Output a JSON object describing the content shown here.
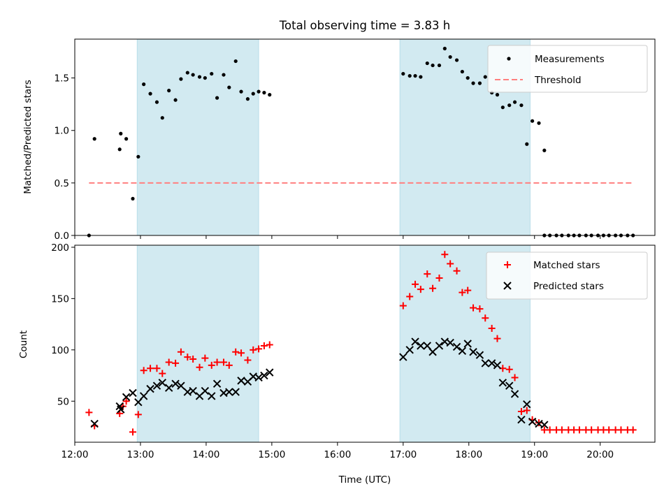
{
  "chart_data": [
    {
      "type": "scatter",
      "title": "Total observing time = 3.83 h",
      "ylabel": "Matched/Predicted stars",
      "xlabel": "",
      "xlim": [
        "12:00",
        "20:50"
      ],
      "ylim": [
        0,
        1.87
      ],
      "yticks": [
        "0.0",
        "0.5",
        "1.0",
        "1.5"
      ],
      "grid": false,
      "legend_position": "top-right",
      "shaded_intervals": [
        [
          "12:57",
          "14:48"
        ],
        [
          "16:57",
          "18:56"
        ]
      ],
      "shade_color": "#add8e6",
      "series": [
        {
          "name": "Measurements",
          "marker": "dot",
          "color": "#000000",
          "points": [
            [
              "12:13",
              0.0
            ],
            [
              "12:18",
              0.92
            ],
            [
              "12:41",
              0.82
            ],
            [
              "12:42",
              0.97
            ],
            [
              "12:47",
              0.92
            ],
            [
              "12:53",
              0.35
            ],
            [
              "12:58",
              0.75
            ],
            [
              "13:03",
              1.44
            ],
            [
              "13:09",
              1.35
            ],
            [
              "13:15",
              1.27
            ],
            [
              "13:20",
              1.12
            ],
            [
              "13:26",
              1.38
            ],
            [
              "13:32",
              1.29
            ],
            [
              "13:37",
              1.49
            ],
            [
              "13:43",
              1.55
            ],
            [
              "13:48",
              1.53
            ],
            [
              "13:54",
              1.51
            ],
            [
              "13:59",
              1.5
            ],
            [
              "14:05",
              1.54
            ],
            [
              "14:10",
              1.31
            ],
            [
              "14:16",
              1.53
            ],
            [
              "14:21",
              1.41
            ],
            [
              "14:27",
              1.66
            ],
            [
              "14:32",
              1.37
            ],
            [
              "14:38",
              1.3
            ],
            [
              "14:43",
              1.35
            ],
            [
              "14:48",
              1.37
            ],
            [
              "14:53",
              1.36
            ],
            [
              "14:58",
              1.34
            ],
            [
              "17:00",
              1.54
            ],
            [
              "17:06",
              1.52
            ],
            [
              "17:11",
              1.52
            ],
            [
              "17:16",
              1.51
            ],
            [
              "17:22",
              1.64
            ],
            [
              "17:27",
              1.62
            ],
            [
              "17:33",
              1.62
            ],
            [
              "17:38",
              1.78
            ],
            [
              "17:43",
              1.7
            ],
            [
              "17:49",
              1.67
            ],
            [
              "17:54",
              1.56
            ],
            [
              "17:59",
              1.5
            ],
            [
              "18:04",
              1.45
            ],
            [
              "18:10",
              1.45
            ],
            [
              "18:15",
              1.51
            ],
            [
              "18:21",
              1.36
            ],
            [
              "18:26",
              1.34
            ],
            [
              "18:31",
              1.22
            ],
            [
              "18:37",
              1.24
            ],
            [
              "18:42",
              1.27
            ],
            [
              "18:48",
              1.24
            ],
            [
              "18:53",
              0.87
            ],
            [
              "18:58",
              1.09
            ],
            [
              "19:04",
              1.07
            ],
            [
              "19:09",
              0.81
            ],
            [
              "19:09",
              0.0
            ],
            [
              "19:14",
              0.0
            ],
            [
              "19:20",
              0.0
            ],
            [
              "19:25",
              0.0
            ],
            [
              "19:31",
              0.0
            ],
            [
              "19:36",
              0.0
            ],
            [
              "19:41",
              0.0
            ],
            [
              "19:47",
              0.0
            ],
            [
              "19:52",
              0.0
            ],
            [
              "19:58",
              0.0
            ],
            [
              "20:03",
              0.0
            ],
            [
              "20:08",
              0.0
            ],
            [
              "20:14",
              0.0
            ],
            [
              "20:19",
              0.0
            ],
            [
              "20:25",
              0.0
            ],
            [
              "20:30",
              0.0
            ]
          ]
        },
        {
          "name": "Threshold",
          "line": "dashed",
          "color": "#ff7f7f",
          "points": [
            [
              "12:13",
              0.5
            ],
            [
              "20:30",
              0.5
            ]
          ]
        }
      ]
    },
    {
      "type": "scatter",
      "title": "",
      "ylabel": "Count",
      "xlabel": "Time (UTC)",
      "xlim": [
        "12:00",
        "20:50"
      ],
      "ylim": [
        10,
        202
      ],
      "yticks": [
        "50",
        "100",
        "150",
        "200"
      ],
      "xticks": [
        "12:00",
        "13:00",
        "14:00",
        "15:00",
        "16:00",
        "17:00",
        "18:00",
        "19:00",
        "20:00"
      ],
      "grid": false,
      "legend_position": "top-right",
      "shaded_intervals": [
        [
          "12:57",
          "14:48"
        ],
        [
          "16:57",
          "18:56"
        ]
      ],
      "shade_color": "#add8e6",
      "series": [
        {
          "name": "Matched stars",
          "marker": "plus",
          "color": "#ff0000",
          "points": [
            [
              "12:13",
              39
            ],
            [
              "12:18",
              26
            ],
            [
              "12:41",
              38
            ],
            [
              "12:44",
              45
            ],
            [
              "12:47",
              50
            ],
            [
              "12:53",
              20
            ],
            [
              "12:58",
              37
            ],
            [
              "13:03",
              80
            ],
            [
              "13:09",
              82
            ],
            [
              "13:15",
              82
            ],
            [
              "13:20",
              77
            ],
            [
              "13:26",
              88
            ],
            [
              "13:32",
              87
            ],
            [
              "13:37",
              98
            ],
            [
              "13:43",
              93
            ],
            [
              "13:48",
              91
            ],
            [
              "13:54",
              83
            ],
            [
              "13:59",
              92
            ],
            [
              "14:05",
              85
            ],
            [
              "14:10",
              88
            ],
            [
              "14:16",
              88
            ],
            [
              "14:21",
              85
            ],
            [
              "14:27",
              98
            ],
            [
              "14:32",
              97
            ],
            [
              "14:38",
              90
            ],
            [
              "14:43",
              100
            ],
            [
              "14:48",
              101
            ],
            [
              "14:53",
              104
            ],
            [
              "14:58",
              105
            ],
            [
              "17:00",
              143
            ],
            [
              "17:06",
              152
            ],
            [
              "17:11",
              164
            ],
            [
              "17:16",
              159
            ],
            [
              "17:22",
              174
            ],
            [
              "17:27",
              160
            ],
            [
              "17:33",
              170
            ],
            [
              "17:38",
              193
            ],
            [
              "17:43",
              184
            ],
            [
              "17:49",
              177
            ],
            [
              "17:54",
              156
            ],
            [
              "17:59",
              158
            ],
            [
              "18:04",
              141
            ],
            [
              "18:10",
              140
            ],
            [
              "18:15",
              131
            ],
            [
              "18:21",
              121
            ],
            [
              "18:26",
              111
            ],
            [
              "18:31",
              82
            ],
            [
              "18:37",
              81
            ],
            [
              "18:42",
              73
            ],
            [
              "18:48",
              40
            ],
            [
              "18:53",
              41
            ],
            [
              "18:58",
              32
            ],
            [
              "19:04",
              29
            ],
            [
              "19:09",
              22
            ],
            [
              "19:14",
              22
            ],
            [
              "19:20",
              22
            ],
            [
              "19:25",
              22
            ],
            [
              "19:31",
              22
            ],
            [
              "19:36",
              22
            ],
            [
              "19:41",
              22
            ],
            [
              "19:47",
              22
            ],
            [
              "19:52",
              22
            ],
            [
              "19:58",
              22
            ],
            [
              "20:03",
              22
            ],
            [
              "20:08",
              22
            ],
            [
              "20:14",
              22
            ],
            [
              "20:19",
              22
            ],
            [
              "20:25",
              22
            ],
            [
              "20:30",
              22
            ]
          ]
        },
        {
          "name": "Predicted stars",
          "marker": "x",
          "color": "#000000",
          "points": [
            [
              "12:18",
              28
            ],
            [
              "12:41",
              45
            ],
            [
              "12:42",
              42
            ],
            [
              "12:47",
              54
            ],
            [
              "12:53",
              58
            ],
            [
              "12:58",
              49
            ],
            [
              "13:03",
              55
            ],
            [
              "13:09",
              62
            ],
            [
              "13:15",
              65
            ],
            [
              "13:20",
              68
            ],
            [
              "13:26",
              63
            ],
            [
              "13:32",
              67
            ],
            [
              "13:37",
              65
            ],
            [
              "13:43",
              59
            ],
            [
              "13:48",
              60
            ],
            [
              "13:54",
              55
            ],
            [
              "13:59",
              60
            ],
            [
              "14:05",
              55
            ],
            [
              "14:10",
              67
            ],
            [
              "14:16",
              58
            ],
            [
              "14:21",
              59
            ],
            [
              "14:27",
              59
            ],
            [
              "14:32",
              70
            ],
            [
              "14:38",
              69
            ],
            [
              "14:43",
              74
            ],
            [
              "14:48",
              73
            ],
            [
              "14:53",
              75
            ],
            [
              "14:58",
              78
            ],
            [
              "17:00",
              93
            ],
            [
              "17:06",
              100
            ],
            [
              "17:11",
              108
            ],
            [
              "17:16",
              104
            ],
            [
              "17:22",
              104
            ],
            [
              "17:27",
              98
            ],
            [
              "17:33",
              104
            ],
            [
              "17:38",
              108
            ],
            [
              "17:43",
              107
            ],
            [
              "17:49",
              103
            ],
            [
              "17:54",
              99
            ],
            [
              "17:59",
              106
            ],
            [
              "18:04",
              98
            ],
            [
              "18:10",
              95
            ],
            [
              "18:15",
              87
            ],
            [
              "18:21",
              87
            ],
            [
              "18:26",
              85
            ],
            [
              "18:31",
              68
            ],
            [
              "18:37",
              65
            ],
            [
              "18:42",
              57
            ],
            [
              "18:48",
              32
            ],
            [
              "18:53",
              47
            ],
            [
              "18:58",
              30
            ],
            [
              "19:04",
              28
            ],
            [
              "19:09",
              27
            ]
          ]
        }
      ]
    }
  ]
}
